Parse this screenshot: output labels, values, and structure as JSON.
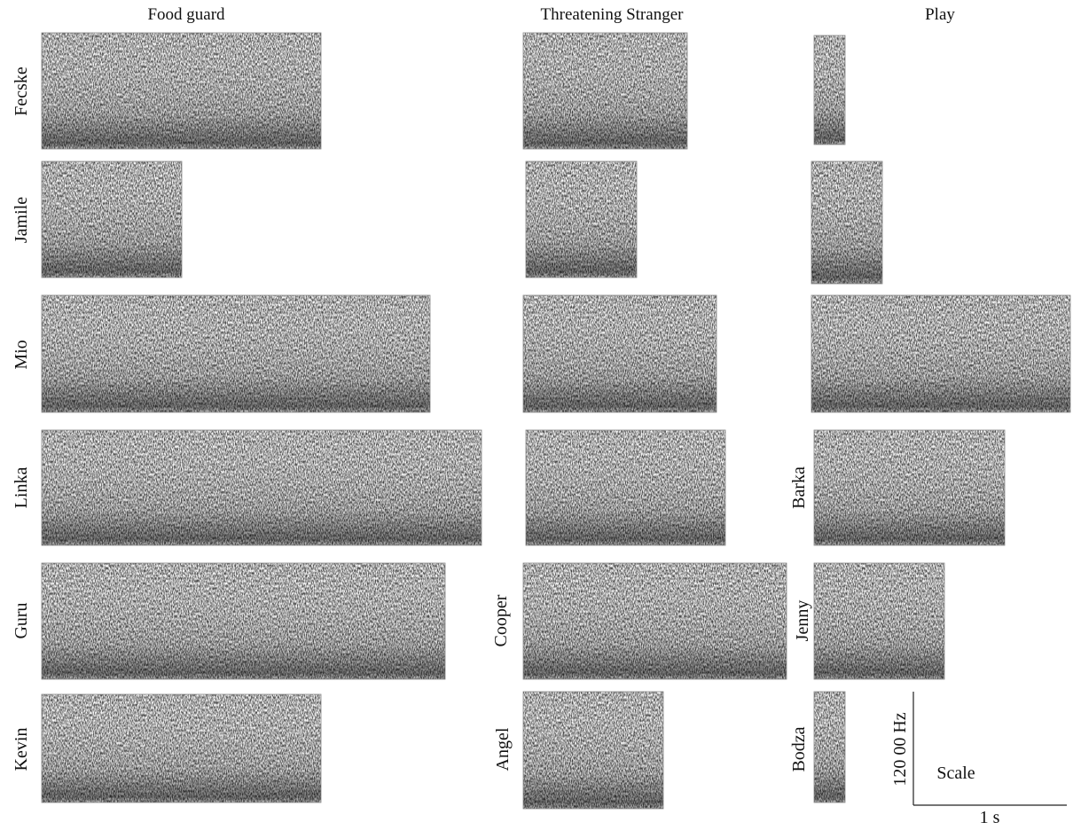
{
  "columns": [
    {
      "title": "Food guard",
      "dogs": [
        "Fecske",
        "Jamile",
        "Mio",
        "Linka",
        "Guru",
        "Kevin"
      ]
    },
    {
      "title": "Threatening Stranger",
      "dogs": [
        "Cooper",
        "Angel"
      ]
    },
    {
      "title": "Play",
      "dogs": [
        "Barka",
        "Jenny",
        "Bodza"
      ]
    }
  ],
  "scale": {
    "frequency": "120 00 Hz",
    "label": "Scale",
    "time": "1 s"
  }
}
